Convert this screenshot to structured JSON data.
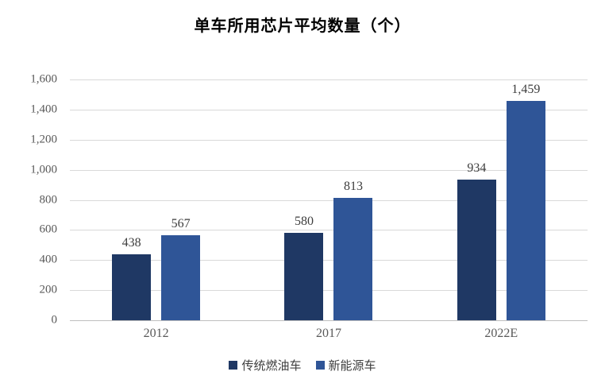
{
  "title": "单车所用芯片平均数量（个）",
  "colors": {
    "series_dark": "#1F3864",
    "series_light": "#2F5597",
    "gridline": "#D9D9D9",
    "axis_line": "#BFBFBF",
    "tick_text": "#595959",
    "value_text": "#3D3D3D",
    "background": "#FFFFFF"
  },
  "chart_data": {
    "type": "bar",
    "title": "单车所用芯片平均数量（个）",
    "categories": [
      "2012",
      "2017",
      "2022E"
    ],
    "series": [
      {
        "name": "传统燃油车",
        "color": "#1F3864",
        "values": [
          438,
          580,
          934
        ]
      },
      {
        "name": "新能源车",
        "color": "#2F5597",
        "values": [
          567,
          813,
          1459
        ]
      }
    ],
    "value_labels": [
      [
        "438",
        "580",
        "934"
      ],
      [
        "567",
        "813",
        "1,459"
      ]
    ],
    "ytick_labels": [
      "0",
      "200",
      "400",
      "600",
      "800",
      "1,000",
      "1,200",
      "1,400",
      "1,600"
    ],
    "xlabel": "",
    "ylabel": "",
    "ylim": [
      0,
      1600
    ],
    "ytick_step": 200,
    "grid": true,
    "legend_position": "bottom"
  }
}
